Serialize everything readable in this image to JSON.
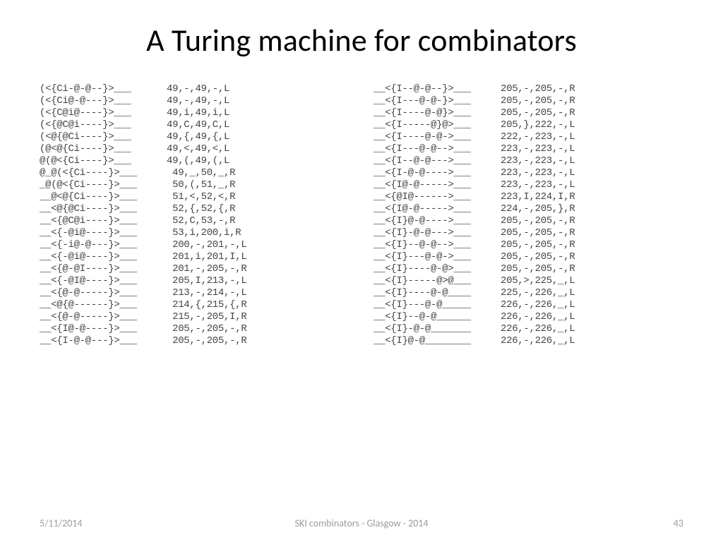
{
  "title": "A Turing machine for combinators",
  "footer": {
    "date": "5/11/2014",
    "center": "SKI combinators - Glasgow - 2014",
    "page": "43"
  },
  "colors": {
    "text": "#000000",
    "mono": "#444444",
    "footer": "#9c9c9c",
    "background": "#ffffff"
  },
  "typography": {
    "title_fontsize_pt": 33,
    "mono_fontsize_pt": 10.5,
    "footer_fontsize_pt": 10.5,
    "mono_family": "Courier New",
    "title_family": "Calibri"
  },
  "columns": [
    {
      "rows": [
        {
          "tape": "(<{Ci-@-@--}>___",
          "rule": "49,-,49,-,L"
        },
        {
          "tape": "(<{Ci@-@---}>___",
          "rule": "49,-,49,-,L"
        },
        {
          "tape": "(<{C@i@----}>___",
          "rule": "49,i,49,i,L"
        },
        {
          "tape": "(<{@C@i----}>___",
          "rule": "49,C,49,C,L"
        },
        {
          "tape": "(<@{@Ci----}>___",
          "rule": "49,{,49,{,L"
        },
        {
          "tape": "(@<@{Ci----}>___",
          "rule": "49,<,49,<,L"
        },
        {
          "tape": "@(@<{Ci----}>___",
          "rule": "49,(,49,(,L"
        },
        {
          "tape": "@_@(<{Ci----}>___",
          "rule": " 49,_,50,_,R"
        },
        {
          "tape": "_@(@<{Ci----}>___",
          "rule": " 50,(,51,_,R"
        },
        {
          "tape": "__@<@{Ci----}>___",
          "rule": " 51,<,52,<,R"
        },
        {
          "tape": "__<@{@Ci----}>___",
          "rule": " 52,{,52,{,R"
        },
        {
          "tape": "__<{@C@i----}>___",
          "rule": " 52,C,53,-,R"
        },
        {
          "tape": "__<{-@i@----}>___",
          "rule": " 53,i,200,i,R"
        },
        {
          "tape": "__<{-i@-@---}>___",
          "rule": " 200,-,201,-,L"
        },
        {
          "tape": "__<{-@i@----}>___",
          "rule": " 201,i,201,I,L"
        },
        {
          "tape": "__<{@-@I----}>___",
          "rule": " 201,-,205,-,R"
        },
        {
          "tape": "__<{-@I@----}>___",
          "rule": " 205,I,213,-,L"
        },
        {
          "tape": "__<{@-@-----}>___",
          "rule": " 213,-,214,-,L"
        },
        {
          "tape": "__<@{@------}>___",
          "rule": " 214,{,215,{,R"
        },
        {
          "tape": "__<{@-@-----}>___",
          "rule": " 215,-,205,I,R"
        },
        {
          "tape": "__<{I@-@----}>___",
          "rule": " 205,-,205,-,R"
        },
        {
          "tape": "__<{I-@-@---}>___",
          "rule": " 205,-,205,-,R"
        }
      ]
    },
    {
      "rows": [
        {
          "tape": "__<{I--@-@--}>___",
          "rule": "205,-,205,-,R"
        },
        {
          "tape": "__<{I---@-@-}>___",
          "rule": "205,-,205,-,R"
        },
        {
          "tape": "__<{I----@-@}>___",
          "rule": "205,-,205,-,R"
        },
        {
          "tape": "__<{I-----@}@>___",
          "rule": "205,},222,-,L"
        },
        {
          "tape": "__<{I----@-@->___",
          "rule": "222,-,223,-,L"
        },
        {
          "tape": "__<{I---@-@-->___",
          "rule": "223,-,223,-,L"
        },
        {
          "tape": "__<{I--@-@--->___",
          "rule": "223,-,223,-,L"
        },
        {
          "tape": "__<{I-@-@---->___",
          "rule": "223,-,223,-,L"
        },
        {
          "tape": "__<{I@-@----->___",
          "rule": "223,-,223,-,L"
        },
        {
          "tape": "__<{@I@------>___",
          "rule": "223,I,224,I,R"
        },
        {
          "tape": "__<{I@-@----->___",
          "rule": "224,-,205,},R"
        },
        {
          "tape": "__<{I}@-@---->___",
          "rule": "205,-,205,-,R"
        },
        {
          "tape": "__<{I}-@-@--->___",
          "rule": "205,-,205,-,R"
        },
        {
          "tape": "__<{I}--@-@-->___",
          "rule": "205,-,205,-,R"
        },
        {
          "tape": "__<{I}---@-@->___",
          "rule": "205,-,205,-,R"
        },
        {
          "tape": "__<{I}----@-@>___",
          "rule": "205,-,205,-,R"
        },
        {
          "tape": "__<{I}-----@>@___",
          "rule": "205,>,225,_,L"
        },
        {
          "tape": "__<{I}----@-@____",
          "rule": "225,-,226,_,L"
        },
        {
          "tape": "__<{I}---@-@_____",
          "rule": "226,-,226,_,L"
        },
        {
          "tape": "__<{I}--@-@______",
          "rule": "226,-,226,_,L"
        },
        {
          "tape": "__<{I}-@-@_______",
          "rule": "226,-,226,_,L"
        },
        {
          "tape": "__<{I}@-@________",
          "rule": "226,-,226,_,L"
        }
      ]
    }
  ]
}
